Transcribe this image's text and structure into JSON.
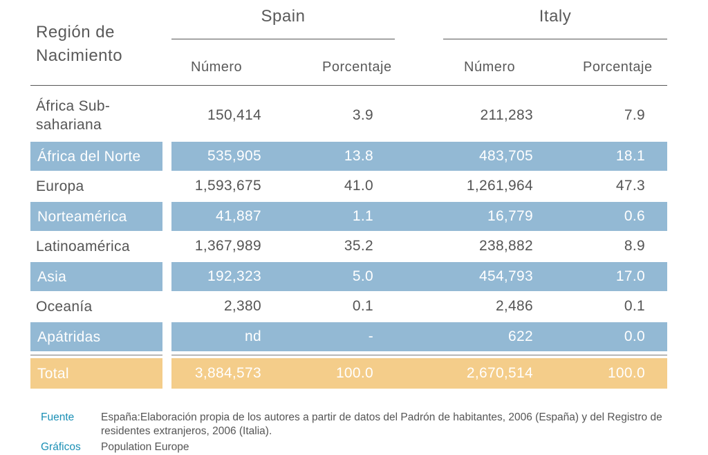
{
  "header": {
    "region_label_line1": "Región de",
    "region_label_line2": "Nacimiento",
    "countries": [
      "Spain",
      "Italy"
    ],
    "subcolumns": [
      "Número",
      "Porcentaje",
      "Número",
      "Porcentaje"
    ]
  },
  "rows": [
    {
      "region": "África Sub-sahariana",
      "spain_num": "150,414",
      "spain_pct": "3.9",
      "italy_num": "211,283",
      "italy_pct": "7.9"
    },
    {
      "region": "África del Norte",
      "spain_num": "535,905",
      "spain_pct": "13.8",
      "italy_num": "483,705",
      "italy_pct": "18.1"
    },
    {
      "region": "Europa",
      "spain_num": "1,593,675",
      "spain_pct": "41.0",
      "italy_num": "1,261,964",
      "italy_pct": "47.3"
    },
    {
      "region": "Norteamérica",
      "spain_num": "41,887",
      "spain_pct": "1.1",
      "italy_num": "16,779",
      "italy_pct": "0.6"
    },
    {
      "region": "Latinoamérica",
      "spain_num": "1,367,989",
      "spain_pct": "35.2",
      "italy_num": "238,882",
      "italy_pct": "8.9"
    },
    {
      "region": "Asia",
      "spain_num": "192,323",
      "spain_pct": "5.0",
      "italy_num": "454,793",
      "italy_pct": "17.0"
    },
    {
      "region": "Oceanía",
      "spain_num": "2,380",
      "spain_pct": "0.1",
      "italy_num": "2,486",
      "italy_pct": "0.1"
    },
    {
      "region": "Apátridas",
      "spain_num": "nd",
      "spain_pct": "-",
      "italy_num": "622",
      "italy_pct": "0.0"
    }
  ],
  "total": {
    "region": "Total",
    "spain_num": "3,884,573",
    "spain_pct": "100.0",
    "italy_num": "2,670,514",
    "italy_pct": "100.0"
  },
  "footer": {
    "source_label": "Fuente",
    "source_text": "España:Elaboración propia de los autores a partir de datos del Padrón de habitantes, 2006 (España) y del Registro de residentes extranjeros, 2006 (Italia).",
    "graphics_label": "Gráficos",
    "graphics_text": "Population Europe"
  },
  "colors": {
    "band_blue": "#93b9d4",
    "band_orange": "#f4cd8a",
    "footer_label": "#1a8fb5"
  }
}
